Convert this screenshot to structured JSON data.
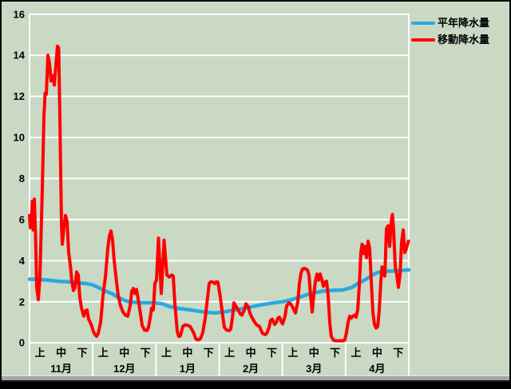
{
  "window": {
    "background": "#c9d9c4",
    "frame_color": "#000000",
    "edge_strip_color": "#a6a6a6"
  },
  "chart_data": {
    "type": "line",
    "title": "",
    "x_unit": "months_from_nov_1",
    "y_axis": {
      "min": 0,
      "max": 16,
      "tick_step": 2,
      "ticks": [
        0,
        2,
        4,
        6,
        8,
        10,
        12,
        14,
        16
      ],
      "grid": true,
      "grid_color": "#ffffff"
    },
    "x_axis": {
      "months": [
        "11月",
        "12月",
        "1月",
        "2月",
        "3月",
        "4月"
      ],
      "period_labels": [
        "上",
        "中",
        "下"
      ]
    },
    "legend": {
      "position": "top-right",
      "items": [
        {
          "label": "平年降水量",
          "color": "#29a9df"
        },
        {
          "label": "移動降水量",
          "color": "#ff0000"
        }
      ]
    },
    "series": [
      {
        "name": "平年降水量",
        "color": "#29a9df",
        "width": 4.5,
        "points": [
          [
            0,
            3.1
          ],
          [
            0.15,
            3.08
          ],
          [
            0.3,
            3.05
          ],
          [
            0.45,
            3.0
          ],
          [
            0.6,
            2.97
          ],
          [
            0.75,
            2.93
          ],
          [
            0.9,
            2.88
          ],
          [
            1.0,
            2.82
          ],
          [
            1.1,
            2.68
          ],
          [
            1.2,
            2.52
          ],
          [
            1.3,
            2.4
          ],
          [
            1.4,
            2.22
          ],
          [
            1.5,
            2.07
          ],
          [
            1.6,
            1.98
          ],
          [
            1.75,
            1.95
          ],
          [
            1.9,
            1.95
          ],
          [
            2.0,
            1.94
          ],
          [
            2.1,
            1.9
          ],
          [
            2.2,
            1.78
          ],
          [
            2.35,
            1.68
          ],
          [
            2.5,
            1.62
          ],
          [
            2.65,
            1.55
          ],
          [
            2.8,
            1.48
          ],
          [
            2.95,
            1.46
          ],
          [
            3.1,
            1.52
          ],
          [
            3.25,
            1.6
          ],
          [
            3.4,
            1.68
          ],
          [
            3.55,
            1.78
          ],
          [
            3.7,
            1.87
          ],
          [
            3.85,
            1.94
          ],
          [
            4.0,
            2.0
          ],
          [
            4.15,
            2.1
          ],
          [
            4.3,
            2.25
          ],
          [
            4.45,
            2.4
          ],
          [
            4.6,
            2.5
          ],
          [
            4.75,
            2.55
          ],
          [
            4.95,
            2.57
          ],
          [
            5.1,
            2.7
          ],
          [
            5.2,
            2.9
          ],
          [
            5.3,
            3.05
          ],
          [
            5.4,
            3.25
          ],
          [
            5.5,
            3.42
          ],
          [
            5.6,
            3.48
          ],
          [
            5.75,
            3.5
          ],
          [
            6.0,
            3.55
          ]
        ]
      },
      {
        "name": "移動降水量",
        "color": "#ff0000",
        "width": 4,
        "points": [
          [
            0,
            6.2
          ],
          [
            0.013,
            5.6
          ],
          [
            0.032,
            6.1
          ],
          [
            0.044,
            6.9
          ],
          [
            0.057,
            5.5
          ],
          [
            0.076,
            7.0
          ],
          [
            0.095,
            5.3
          ],
          [
            0.114,
            2.7
          ],
          [
            0.139,
            2.1
          ],
          [
            0.164,
            3.2
          ],
          [
            0.202,
            7.5
          ],
          [
            0.227,
            11.0
          ],
          [
            0.246,
            12.15
          ],
          [
            0.265,
            12.1
          ],
          [
            0.291,
            14.0
          ],
          [
            0.316,
            13.6
          ],
          [
            0.341,
            12.75
          ],
          [
            0.366,
            13.0
          ],
          [
            0.392,
            12.55
          ],
          [
            0.417,
            13.5
          ],
          [
            0.442,
            14.45
          ],
          [
            0.461,
            14.35
          ],
          [
            0.48,
            11.0
          ],
          [
            0.505,
            5.8
          ],
          [
            0.518,
            4.8
          ],
          [
            0.543,
            5.6
          ],
          [
            0.568,
            6.2
          ],
          [
            0.594,
            5.9
          ],
          [
            0.619,
            4.4
          ],
          [
            0.644,
            3.8
          ],
          [
            0.669,
            3.0
          ],
          [
            0.695,
            2.55
          ],
          [
            0.72,
            2.7
          ],
          [
            0.745,
            3.45
          ],
          [
            0.77,
            3.3
          ],
          [
            0.796,
            2.2
          ],
          [
            0.821,
            1.7
          ],
          [
            0.859,
            1.3
          ],
          [
            0.884,
            1.55
          ],
          [
            0.909,
            1.6
          ],
          [
            0.935,
            1.15
          ],
          [
            0.96,
            1.0
          ],
          [
            0.985,
            0.8
          ],
          [
            1.011,
            0.55
          ],
          [
            1.036,
            0.4
          ],
          [
            1.061,
            0.32
          ],
          [
            1.086,
            0.45
          ],
          [
            1.124,
            1.0
          ],
          [
            1.162,
            2.3
          ],
          [
            1.2,
            3.2
          ],
          [
            1.238,
            4.6
          ],
          [
            1.263,
            5.2
          ],
          [
            1.288,
            5.45
          ],
          [
            1.314,
            5.0
          ],
          [
            1.339,
            4.0
          ],
          [
            1.364,
            3.3
          ],
          [
            1.402,
            2.3
          ],
          [
            1.44,
            1.8
          ],
          [
            1.478,
            1.5
          ],
          [
            1.516,
            1.35
          ],
          [
            1.554,
            1.3
          ],
          [
            1.592,
            1.8
          ],
          [
            1.617,
            2.5
          ],
          [
            1.642,
            2.65
          ],
          [
            1.667,
            2.4
          ],
          [
            1.693,
            2.6
          ],
          [
            1.73,
            1.9
          ],
          [
            1.756,
            1.4
          ],
          [
            1.781,
            0.85
          ],
          [
            1.819,
            0.62
          ],
          [
            1.857,
            0.6
          ],
          [
            1.882,
            0.75
          ],
          [
            1.907,
            1.2
          ],
          [
            1.933,
            1.7
          ],
          [
            1.958,
            1.6
          ],
          [
            1.983,
            2.9
          ],
          [
            2.008,
            3.05
          ],
          [
            2.04,
            5.1
          ],
          [
            2.084,
            2.4
          ],
          [
            2.128,
            5.0
          ],
          [
            2.173,
            3.3
          ],
          [
            2.21,
            3.2
          ],
          [
            2.248,
            3.3
          ],
          [
            2.274,
            3.25
          ],
          [
            2.299,
            1.9
          ],
          [
            2.337,
            0.55
          ],
          [
            2.362,
            0.3
          ],
          [
            2.387,
            0.35
          ],
          [
            2.425,
            0.8
          ],
          [
            2.463,
            0.88
          ],
          [
            2.501,
            0.85
          ],
          [
            2.539,
            0.8
          ],
          [
            2.577,
            0.6
          ],
          [
            2.602,
            0.45
          ],
          [
            2.628,
            0.2
          ],
          [
            2.653,
            0.15
          ],
          [
            2.678,
            0.15
          ],
          [
            2.703,
            0.2
          ],
          [
            2.741,
            0.5
          ],
          [
            2.779,
            1.2
          ],
          [
            2.817,
            2.2
          ],
          [
            2.842,
            2.9
          ],
          [
            2.867,
            2.97
          ],
          [
            2.905,
            2.95
          ],
          [
            2.93,
            2.88
          ],
          [
            2.956,
            2.97
          ],
          [
            2.981,
            2.95
          ],
          [
            3.019,
            2.2
          ],
          [
            3.057,
            1.3
          ],
          [
            3.082,
            0.75
          ],
          [
            3.12,
            0.62
          ],
          [
            3.158,
            0.6
          ],
          [
            3.183,
            0.66
          ],
          [
            3.208,
            1.2
          ],
          [
            3.234,
            1.95
          ],
          [
            3.272,
            1.75
          ],
          [
            3.309,
            1.55
          ],
          [
            3.335,
            1.4
          ],
          [
            3.36,
            1.35
          ],
          [
            3.398,
            1.6
          ],
          [
            3.423,
            1.9
          ],
          [
            3.461,
            1.75
          ],
          [
            3.486,
            1.45
          ],
          [
            3.524,
            1.2
          ],
          [
            3.562,
            1.0
          ],
          [
            3.6,
            0.85
          ],
          [
            3.638,
            0.8
          ],
          [
            3.663,
            0.6
          ],
          [
            3.688,
            0.45
          ],
          [
            3.726,
            0.4
          ],
          [
            3.751,
            0.45
          ],
          [
            3.789,
            0.75
          ],
          [
            3.815,
            1.1
          ],
          [
            3.84,
            1.15
          ],
          [
            3.878,
            0.9
          ],
          [
            3.903,
            1.0
          ],
          [
            3.928,
            1.2
          ],
          [
            3.954,
            1.25
          ],
          [
            3.979,
            1.05
          ],
          [
            4.004,
            0.92
          ],
          [
            4.042,
            1.3
          ],
          [
            4.067,
            1.8
          ],
          [
            4.105,
            1.95
          ],
          [
            4.13,
            1.9
          ],
          [
            4.168,
            1.7
          ],
          [
            4.206,
            1.45
          ],
          [
            4.244,
            2.0
          ],
          [
            4.269,
            2.9
          ],
          [
            4.295,
            3.4
          ],
          [
            4.32,
            3.6
          ],
          [
            4.358,
            3.62
          ],
          [
            4.396,
            3.55
          ],
          [
            4.421,
            3.3
          ],
          [
            4.446,
            2.3
          ],
          [
            4.471,
            1.5
          ],
          [
            4.497,
            2.3
          ],
          [
            4.522,
            3.0
          ],
          [
            4.547,
            3.35
          ],
          [
            4.572,
            3.05
          ],
          [
            4.598,
            3.35
          ],
          [
            4.623,
            3.1
          ],
          [
            4.648,
            2.75
          ],
          [
            4.673,
            2.95
          ],
          [
            4.699,
            3.0
          ],
          [
            4.724,
            2.3
          ],
          [
            4.749,
            1.0
          ],
          [
            4.774,
            0.3
          ],
          [
            4.812,
            0.12
          ],
          [
            4.85,
            0.1
          ],
          [
            4.888,
            0.1
          ],
          [
            4.926,
            0.1
          ],
          [
            4.964,
            0.1
          ],
          [
            4.989,
            0.15
          ],
          [
            5.015,
            0.5
          ],
          [
            5.04,
            1.0
          ],
          [
            5.065,
            1.3
          ],
          [
            5.09,
            1.2
          ],
          [
            5.116,
            1.3
          ],
          [
            5.141,
            1.35
          ],
          [
            5.166,
            1.25
          ],
          [
            5.192,
            1.6
          ],
          [
            5.217,
            2.8
          ],
          [
            5.242,
            4.4
          ],
          [
            5.261,
            4.8
          ],
          [
            5.28,
            4.35
          ],
          [
            5.305,
            4.7
          ],
          [
            5.331,
            4.15
          ],
          [
            5.356,
            4.95
          ],
          [
            5.381,
            4.6
          ],
          [
            5.406,
            3.0
          ],
          [
            5.432,
            1.5
          ],
          [
            5.457,
            0.9
          ],
          [
            5.482,
            0.72
          ],
          [
            5.508,
            0.8
          ],
          [
            5.533,
            1.6
          ],
          [
            5.558,
            3.0
          ],
          [
            5.577,
            3.7
          ],
          [
            5.596,
            3.5
          ],
          [
            5.621,
            3.25
          ],
          [
            5.646,
            5.55
          ],
          [
            5.672,
            5.7
          ],
          [
            5.697,
            4.7
          ],
          [
            5.722,
            5.9
          ],
          [
            5.741,
            6.25
          ],
          [
            5.76,
            5.5
          ],
          [
            5.785,
            3.7
          ],
          [
            5.811,
            3.3
          ],
          [
            5.836,
            2.7
          ],
          [
            5.861,
            3.3
          ],
          [
            5.886,
            4.9
          ],
          [
            5.912,
            5.5
          ],
          [
            5.937,
            4.4
          ],
          [
            5.962,
            4.6
          ],
          [
            5.994,
            4.95
          ]
        ]
      }
    ]
  }
}
